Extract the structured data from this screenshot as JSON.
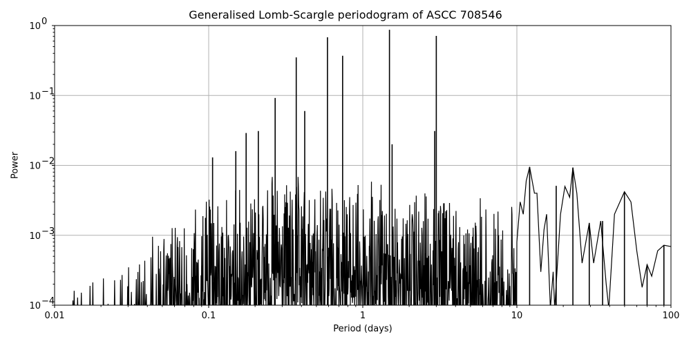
{
  "chart_data": {
    "type": "line",
    "title": "Generalised Lomb-Scargle periodogram of ASCC 708546",
    "xlabel": "Period (days)",
    "ylabel": "Power",
    "xscale": "log",
    "yscale": "log",
    "xlim": [
      0.01,
      100
    ],
    "ylim": [
      0.0001,
      1
    ],
    "grid": true,
    "legend": null,
    "x_ticks": [
      "0.01",
      "0.1",
      "1",
      "10",
      "100"
    ],
    "y_ticks": [
      "10^-4",
      "10^-3",
      "10^-2",
      "10^-1",
      "10^0"
    ],
    "line_color": "#000000",
    "grid_color": "#b0b0b0",
    "series": [
      {
        "name": "GLS power",
        "peaks": [
          {
            "period": 1.49,
            "power": 0.87
          },
          {
            "period": 3.0,
            "power": 0.71
          },
          {
            "period": 0.59,
            "power": 0.68
          },
          {
            "period": 0.74,
            "power": 0.37
          },
          {
            "period": 0.37,
            "power": 0.35
          },
          {
            "period": 0.27,
            "power": 0.092
          },
          {
            "period": 0.42,
            "power": 0.06
          },
          {
            "period": 0.21,
            "power": 0.031
          },
          {
            "period": 0.175,
            "power": 0.029
          },
          {
            "period": 0.15,
            "power": 0.016
          },
          {
            "period": 0.106,
            "power": 0.013
          },
          {
            "period": 1.55,
            "power": 0.02
          },
          {
            "period": 2.93,
            "power": 0.031
          },
          {
            "period": 12.1,
            "power": 0.0095
          },
          {
            "period": 23.1,
            "power": 0.0093
          },
          {
            "period": 49.9,
            "power": 0.0042
          },
          {
            "period": 18.0,
            "power": 0.0051
          },
          {
            "period": 29.5,
            "power": 0.0015
          },
          {
            "period": 36.0,
            "power": 0.0016
          },
          {
            "period": 70.0,
            "power": 0.00038
          },
          {
            "period": 90.0,
            "power": 0.00072
          }
        ],
        "envelope": {
          "period": [
            0.01,
            0.02,
            0.03,
            0.05,
            0.1,
            0.2,
            0.5,
            1.0,
            2.0,
            5.0,
            10.0
          ],
          "typical_max_power": [
            0.00015,
            0.0003,
            0.0006,
            0.0015,
            0.004,
            0.008,
            0.007,
            0.007,
            0.005,
            0.004,
            0.003
          ]
        }
      }
    ]
  },
  "labels": {
    "title": "Generalised Lomb-Scargle periodogram of ASCC 708546",
    "xlabel": "Period (days)",
    "ylabel": "Power"
  }
}
